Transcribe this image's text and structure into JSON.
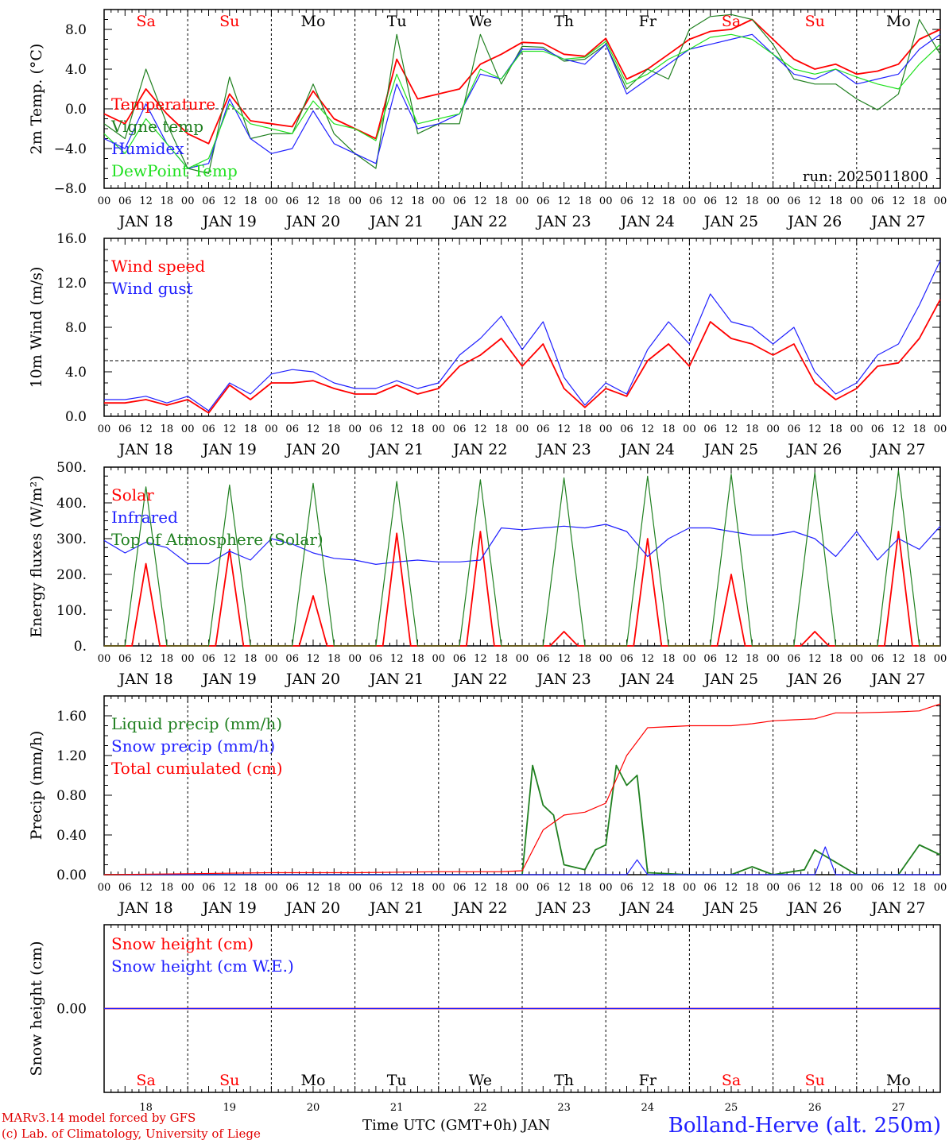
{
  "colors": {
    "red": "#ff0000",
    "green": "#208020",
    "blue": "#2020ff",
    "lightgreen": "#20e020",
    "black": "#000000"
  },
  "days": {
    "dates": [
      "JAN 18",
      "JAN 19",
      "JAN 20",
      "JAN 21",
      "JAN 22",
      "JAN 23",
      "JAN 24",
      "JAN 25",
      "JAN 26",
      "JAN 27"
    ],
    "short_dates": [
      "18",
      "19",
      "20",
      "21",
      "22",
      "23",
      "24",
      "25",
      "26",
      "27"
    ],
    "weekdays": [
      "Sa",
      "Su",
      "Mo",
      "Tu",
      "We",
      "Th",
      "Fr",
      "Sa",
      "Su",
      "Mo"
    ],
    "weekday_colors": [
      "#ff0000",
      "#ff0000",
      "#000000",
      "#000000",
      "#000000",
      "#000000",
      "#000000",
      "#ff0000",
      "#ff0000",
      "#000000"
    ],
    "hour_ticks": [
      "00",
      "06",
      "12",
      "18"
    ],
    "hour_tick_end": "00"
  },
  "footer": {
    "credit_line1": "MARv3.14 model forced by GFS",
    "credit_line2": "(c) Lab. of Climatology, University of Liege",
    "xtitle": "Time UTC (GMT+0h) JAN",
    "station": "Bolland-Herve (alt. 250m)"
  },
  "chart_data": [
    {
      "type": "line",
      "ylabel": "2m Temp. (°C)",
      "ylim": [
        -8,
        10
      ],
      "yticks": [
        -8,
        -4,
        0,
        4,
        8
      ],
      "ytick_labels": [
        "−8.0",
        "−4.0",
        "0.0",
        "4.0",
        "8.0"
      ],
      "dashed_y": 0,
      "annotation": "run: 2025011800",
      "x_unit": "hours since JAN 18 00 UTC",
      "series": [
        {
          "name": "Temperature",
          "color": "#ff0000",
          "x": [
            0,
            6,
            12,
            18,
            24,
            30,
            36,
            42,
            48,
            54,
            60,
            66,
            72,
            78,
            84,
            90,
            96,
            102,
            108,
            114,
            120,
            126,
            132,
            138,
            144,
            150,
            156,
            162,
            168,
            174,
            180,
            186,
            192,
            198,
            204,
            210,
            216,
            222,
            228,
            234,
            240
          ],
          "y": [
            -0.5,
            -1.5,
            2.0,
            -0.5,
            -2.5,
            -3.5,
            1.5,
            -1.2,
            -1.5,
            -1.8,
            1.8,
            -1.0,
            -2.0,
            -3.0,
            5.0,
            1.0,
            1.5,
            2.0,
            4.5,
            5.5,
            6.7,
            6.6,
            5.5,
            5.3,
            7.1,
            3.0,
            4.0,
            5.5,
            7.0,
            7.8,
            8.0,
            9.0,
            7.0,
            5.0,
            4.0,
            4.5,
            3.5,
            3.8,
            4.5,
            7.0,
            8.0
          ]
        },
        {
          "name": "Vigne temp",
          "color": "#208020",
          "x": [
            0,
            6,
            12,
            18,
            24,
            30,
            36,
            42,
            48,
            54,
            60,
            66,
            72,
            78,
            84,
            90,
            96,
            102,
            108,
            114,
            120,
            126,
            132,
            138,
            144,
            150,
            156,
            162,
            168,
            174,
            180,
            186,
            192,
            198,
            204,
            210,
            216,
            222,
            228,
            234,
            240
          ],
          "y": [
            -1.5,
            -3.0,
            4.0,
            -1.5,
            -6.0,
            -6.5,
            3.2,
            -3.0,
            -2.5,
            -2.5,
            2.5,
            -2.5,
            -4.5,
            -6.0,
            7.5,
            -2.5,
            -1.5,
            -1.5,
            7.5,
            2.5,
            6.3,
            6.2,
            4.8,
            5.0,
            6.5,
            2.0,
            4.0,
            3.0,
            8.0,
            9.3,
            9.5,
            9.0,
            6.5,
            3.0,
            2.5,
            2.5,
            1.0,
            -0.1,
            1.5,
            9.0,
            5.5
          ]
        },
        {
          "name": "Humidex",
          "color": "#2020ff",
          "x": [
            0,
            6,
            12,
            18,
            24,
            30,
            36,
            42,
            48,
            54,
            60,
            66,
            72,
            78,
            84,
            90,
            96,
            102,
            108,
            114,
            120,
            126,
            132,
            138,
            144,
            150,
            156,
            162,
            168,
            174,
            180,
            186,
            192,
            198,
            204,
            210,
            216,
            222,
            228,
            234,
            240
          ],
          "y": [
            -3.0,
            -4.0,
            0.5,
            -3.5,
            -6.0,
            -5.5,
            1.0,
            -3.0,
            -4.5,
            -4.0,
            -0.2,
            -3.5,
            -4.5,
            -5.5,
            2.5,
            -2.0,
            -1.5,
            -0.5,
            3.5,
            3.0,
            6.0,
            6.0,
            5.0,
            4.5,
            6.5,
            1.5,
            3.0,
            4.5,
            6.0,
            6.5,
            7.0,
            7.5,
            5.5,
            3.5,
            3.0,
            4.0,
            2.5,
            3.0,
            3.5,
            6.0,
            7.5
          ]
        },
        {
          "name": "DewPoint Temp",
          "color": "#20e020",
          "x": [
            0,
            6,
            12,
            18,
            24,
            30,
            36,
            42,
            48,
            54,
            60,
            66,
            72,
            78,
            84,
            90,
            96,
            102,
            108,
            114,
            120,
            126,
            132,
            138,
            144,
            150,
            156,
            162,
            168,
            174,
            180,
            186,
            192,
            198,
            204,
            210,
            216,
            222,
            228,
            234,
            240
          ],
          "y": [
            -2.5,
            -4.5,
            -1.0,
            -3.5,
            -6.0,
            -5.0,
            0.5,
            -1.5,
            -2.0,
            -2.5,
            0.8,
            -1.5,
            -2.0,
            -3.2,
            3.5,
            -1.5,
            -1.0,
            -0.5,
            4.0,
            3.0,
            5.8,
            5.8,
            5.0,
            5.2,
            6.8,
            2.5,
            3.5,
            5.0,
            6.0,
            7.2,
            7.5,
            7.0,
            5.5,
            4.0,
            3.5,
            4.0,
            3.2,
            2.5,
            2.0,
            4.5,
            6.5
          ]
        }
      ]
    },
    {
      "type": "line",
      "ylabel": "10m Wind (m/s)",
      "ylim": [
        0,
        16
      ],
      "yticks": [
        0,
        4,
        8,
        12,
        16
      ],
      "ytick_labels": [
        "0.0",
        "4.0",
        "8.0",
        "12.0",
        "16.0"
      ],
      "dashed_y": 5,
      "series": [
        {
          "name": "Wind speed",
          "color": "#ff0000",
          "x": [
            0,
            6,
            12,
            18,
            24,
            30,
            36,
            42,
            48,
            54,
            60,
            66,
            72,
            78,
            84,
            90,
            96,
            102,
            108,
            114,
            120,
            126,
            132,
            138,
            144,
            150,
            156,
            162,
            168,
            174,
            180,
            186,
            192,
            198,
            204,
            210,
            216,
            222,
            228,
            234,
            240
          ],
          "y": [
            1.2,
            1.2,
            1.5,
            1.0,
            1.5,
            0.3,
            2.8,
            1.5,
            3.0,
            3.0,
            3.2,
            2.5,
            2.0,
            2.0,
            2.8,
            2.0,
            2.5,
            4.5,
            5.5,
            7.0,
            4.5,
            6.5,
            2.5,
            0.8,
            2.5,
            1.8,
            5.0,
            6.5,
            4.5,
            8.5,
            7.0,
            6.5,
            5.5,
            6.5,
            3.0,
            1.5,
            2.5,
            4.5,
            4.8,
            7.0,
            10.5
          ]
        },
        {
          "name": "Wind gust",
          "color": "#2020ff",
          "x": [
            0,
            6,
            12,
            18,
            24,
            30,
            36,
            42,
            48,
            54,
            60,
            66,
            72,
            78,
            84,
            90,
            96,
            102,
            108,
            114,
            120,
            126,
            132,
            138,
            144,
            150,
            156,
            162,
            168,
            174,
            180,
            186,
            192,
            198,
            204,
            210,
            216,
            222,
            228,
            234,
            240
          ],
          "y": [
            1.5,
            1.5,
            1.8,
            1.2,
            1.8,
            0.5,
            3.0,
            2.0,
            3.8,
            4.2,
            4.0,
            3.0,
            2.5,
            2.5,
            3.2,
            2.5,
            3.0,
            5.5,
            7.0,
            9.0,
            6.0,
            8.5,
            3.5,
            1.0,
            3.0,
            2.0,
            6.0,
            8.5,
            6.5,
            11.0,
            8.5,
            8.0,
            6.5,
            8.0,
            4.0,
            2.0,
            3.0,
            5.5,
            6.5,
            10.0,
            14.0
          ]
        }
      ]
    },
    {
      "type": "line",
      "ylabel": "Energy fluxes (W/m²)",
      "ylim": [
        0,
        500
      ],
      "yticks": [
        0,
        100,
        200,
        300,
        400,
        500
      ],
      "ytick_labels": [
        "0.",
        "100.",
        "200.",
        "300.",
        "400.",
        "500."
      ],
      "series": [
        {
          "name": "Solar",
          "color": "#ff0000",
          "x": [
            0,
            8,
            12,
            16,
            24,
            32,
            36,
            40,
            48,
            56,
            60,
            64,
            72,
            80,
            84,
            88,
            96,
            104,
            108,
            112,
            120,
            128,
            132,
            136,
            144,
            152,
            156,
            160,
            168,
            176,
            180,
            184,
            192,
            200,
            204,
            208,
            216,
            224,
            228,
            232,
            240
          ],
          "y": [
            0,
            0,
            230,
            0,
            0,
            0,
            270,
            0,
            0,
            0,
            140,
            0,
            0,
            0,
            315,
            0,
            0,
            0,
            320,
            0,
            0,
            0,
            40,
            0,
            0,
            0,
            300,
            0,
            0,
            0,
            200,
            0,
            0,
            0,
            40,
            0,
            0,
            0,
            320,
            0,
            0
          ]
        },
        {
          "name": "Infrared",
          "color": "#2020ff",
          "x": [
            0,
            6,
            12,
            18,
            24,
            30,
            36,
            42,
            48,
            54,
            60,
            66,
            72,
            78,
            84,
            90,
            96,
            102,
            108,
            114,
            120,
            126,
            132,
            138,
            144,
            150,
            156,
            162,
            168,
            174,
            180,
            186,
            192,
            198,
            204,
            210,
            216,
            222,
            228,
            234,
            240
          ],
          "y": [
            295,
            260,
            290,
            275,
            230,
            230,
            265,
            240,
            300,
            285,
            260,
            245,
            240,
            228,
            235,
            240,
            235,
            235,
            240,
            330,
            325,
            330,
            335,
            330,
            340,
            320,
            250,
            300,
            330,
            330,
            320,
            310,
            310,
            320,
            300,
            250,
            320,
            240,
            300,
            270,
            335
          ]
        },
        {
          "name": "Top of Atmosphere (Solar)",
          "color": "#208020",
          "x": [
            0,
            6,
            12,
            18,
            24,
            30,
            36,
            42,
            48,
            54,
            60,
            66,
            72,
            78,
            84,
            90,
            96,
            102,
            108,
            114,
            120,
            126,
            132,
            138,
            144,
            150,
            156,
            162,
            168,
            174,
            180,
            186,
            192,
            198,
            204,
            210,
            216,
            222,
            228,
            234,
            240
          ],
          "y": [
            0,
            0,
            445,
            0,
            0,
            0,
            450,
            0,
            0,
            0,
            455,
            0,
            0,
            0,
            460,
            0,
            0,
            0,
            465,
            0,
            0,
            0,
            470,
            0,
            0,
            0,
            475,
            0,
            0,
            0,
            480,
            0,
            0,
            0,
            485,
            0,
            0,
            0,
            490,
            0,
            0
          ]
        }
      ]
    },
    {
      "type": "line",
      "ylabel": "Precip (mm/h)",
      "ylim": [
        0,
        1.8
      ],
      "yticks": [
        0,
        0.4,
        0.8,
        1.2,
        1.6
      ],
      "ytick_labels": [
        "0.00",
        "0.40",
        "0.80",
        "1.20",
        "1.60"
      ],
      "series": [
        {
          "name": "Liquid precip (mm/h)",
          "color": "#208020",
          "x": [
            0,
            24,
            48,
            72,
            96,
            114,
            120,
            123,
            126,
            129,
            132,
            138,
            141,
            144,
            147,
            150,
            153,
            156,
            168,
            180,
            186,
            192,
            201,
            204,
            216,
            228,
            234,
            240
          ],
          "y": [
            0,
            0,
            0,
            0,
            0,
            0,
            0,
            1.1,
            0.7,
            0.6,
            0.1,
            0.05,
            0.25,
            0.3,
            1.1,
            0.9,
            1.0,
            0.02,
            0,
            0,
            0.08,
            0,
            0.05,
            0.25,
            0,
            0,
            0.3,
            0.2
          ]
        },
        {
          "name": "Snow precip (mm/h)",
          "color": "#2020ff",
          "x": [
            0,
            24,
            48,
            72,
            96,
            144,
            150,
            153,
            156,
            168,
            192,
            198,
            204,
            207,
            210,
            216,
            228,
            240
          ],
          "y": [
            0,
            0,
            0,
            0,
            0,
            0,
            0,
            0.15,
            0,
            0,
            0,
            0,
            0,
            0.28,
            0,
            0,
            0,
            0
          ]
        },
        {
          "name": "Total cumulated (cm)",
          "color": "#ff0000",
          "x": [
            0,
            24,
            48,
            72,
            96,
            114,
            120,
            126,
            132,
            138,
            144,
            150,
            156,
            168,
            180,
            186,
            192,
            198,
            204,
            210,
            216,
            228,
            234,
            240
          ],
          "y": [
            0,
            0.01,
            0.02,
            0.02,
            0.03,
            0.03,
            0.04,
            0.45,
            0.6,
            0.63,
            0.72,
            1.2,
            1.48,
            1.5,
            1.5,
            1.52,
            1.55,
            1.56,
            1.57,
            1.63,
            1.63,
            1.64,
            1.65,
            1.72
          ]
        }
      ]
    },
    {
      "type": "line",
      "ylabel": "Snow height (cm)",
      "ylim": [
        -1,
        1
      ],
      "yticks": [
        0
      ],
      "ytick_labels": [
        "0.00"
      ],
      "series": [
        {
          "name": "Snow height (cm)",
          "color": "#ff0000",
          "x": [
            0,
            240
          ],
          "y": [
            0,
            0
          ]
        },
        {
          "name": "Snow height (cm W.E.)",
          "color": "#2020ff",
          "x": [
            0,
            240
          ],
          "y": [
            0,
            0
          ]
        }
      ]
    }
  ]
}
